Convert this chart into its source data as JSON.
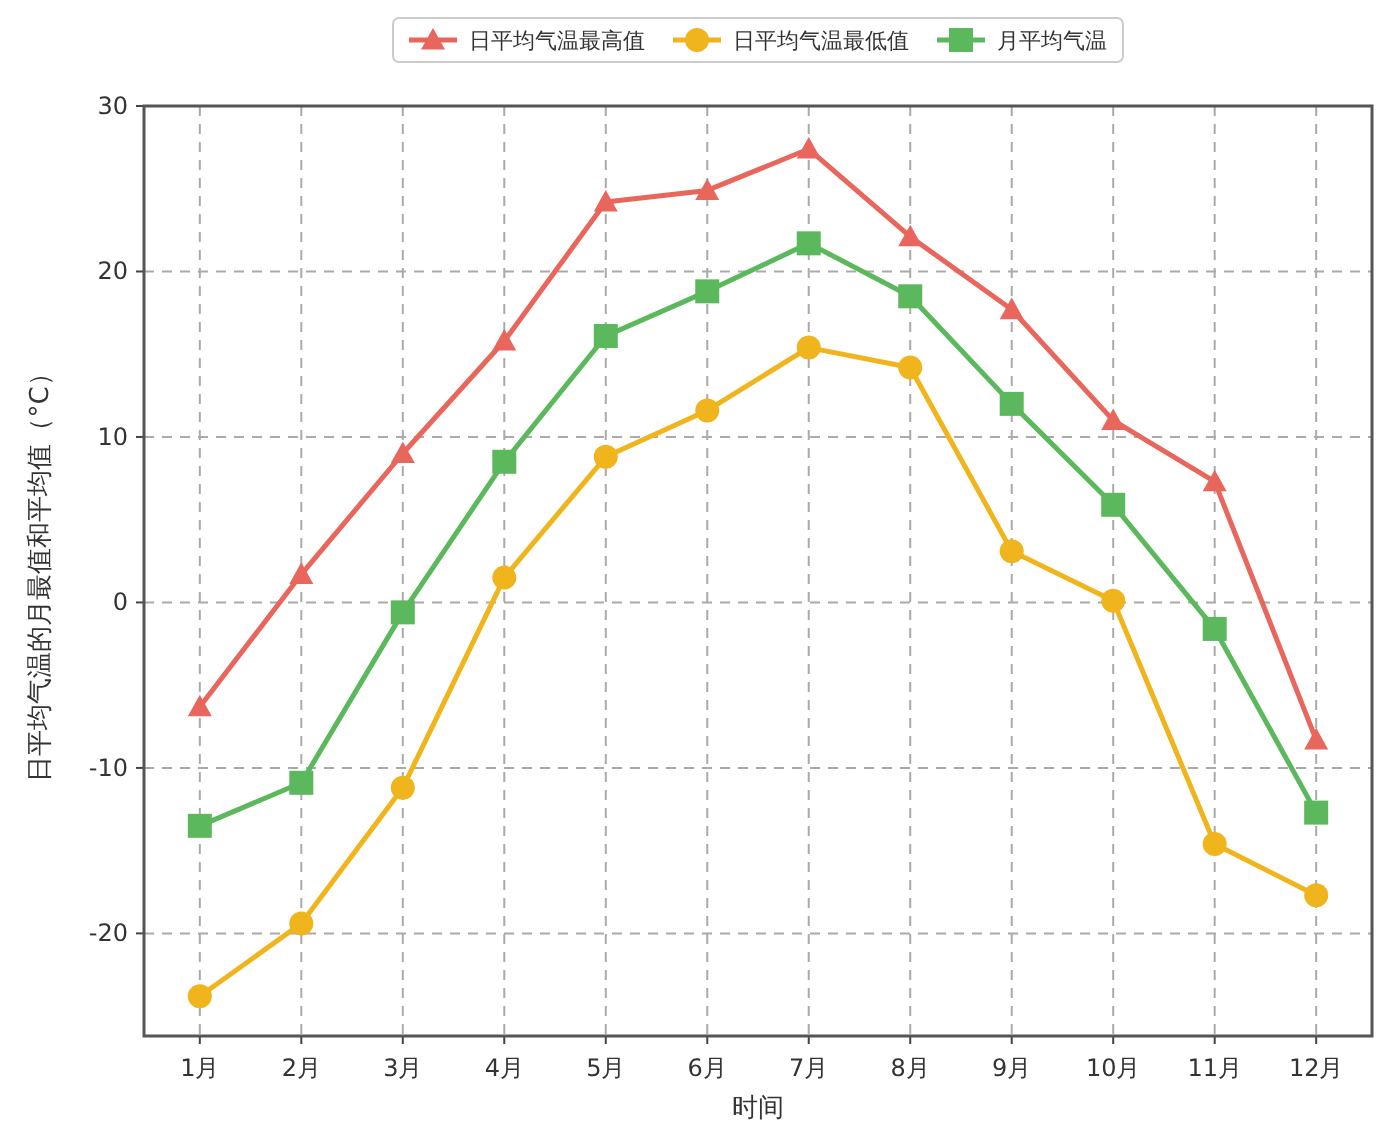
{
  "chart_data": {
    "type": "line",
    "xlabel": "时间",
    "ylabel": "日平均气温的月最值和平均值（°C）",
    "categories": [
      "1月",
      "2月",
      "3月",
      "4月",
      "5月",
      "6月",
      "7月",
      "8月",
      "9月",
      "10月",
      "11月",
      "12月"
    ],
    "series": [
      {
        "name": "日平均气温最高值",
        "color": "#e8665c",
        "marker": "triangle",
        "values": [
          -6.3,
          1.7,
          9.0,
          15.8,
          24.2,
          24.9,
          27.4,
          22.1,
          17.7,
          11.0,
          7.3,
          -8.3
        ]
      },
      {
        "name": "日平均气温最低值",
        "color": "#f0b41c",
        "marker": "circle",
        "values": [
          -23.8,
          -19.4,
          -11.2,
          1.5,
          8.8,
          11.6,
          15.4,
          14.2,
          3.1,
          0.1,
          -14.6,
          -17.7
        ]
      },
      {
        "name": "月平均气温",
        "color": "#5cb85c",
        "marker": "square",
        "values": [
          -13.5,
          -10.9,
          -0.6,
          8.5,
          16.1,
          18.8,
          21.7,
          18.5,
          12.0,
          5.9,
          -1.6,
          -12.7
        ]
      }
    ],
    "ylim": [
      -26.2,
      30
    ],
    "yticks": [
      -20,
      -10,
      0,
      10,
      20,
      30
    ],
    "grid": true,
    "legend": "top",
    "line_style": "solid"
  }
}
